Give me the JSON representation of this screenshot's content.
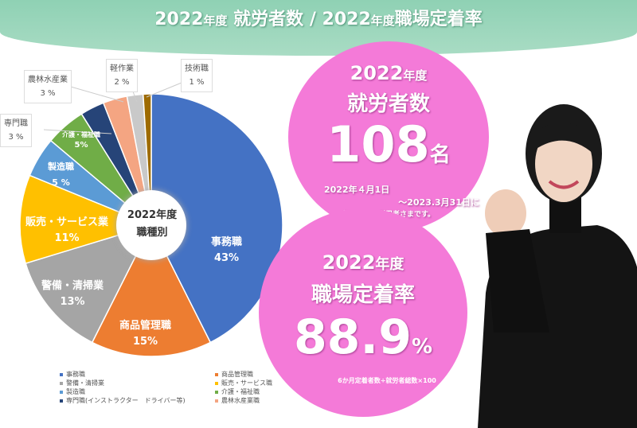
{
  "header": {
    "title_year1": "2022",
    "title_nendo1": "年度",
    "title_part1": "就労者数",
    "sep": "/",
    "title_year2": "2022",
    "title_nendo2": "年度",
    "title_part2": "職場定着率"
  },
  "chart_data": {
    "type": "pie",
    "title": "2022年度 職種別",
    "center_label_line1": "2022年度",
    "center_label_line2": "職種別",
    "categories": [
      "事務職",
      "商品管理職",
      "警備・清掃業",
      "販売・サービス業",
      "製造職",
      "介護・福祉職",
      "専門職",
      "農林水産業",
      "軽作業",
      "技術職"
    ],
    "values": [
      43,
      15,
      13,
      11,
      5,
      5,
      3,
      3,
      2,
      1
    ],
    "labels": [
      "43%",
      "15%",
      "13%",
      "11%",
      "5 %",
      "5%",
      "3 %",
      "3 %",
      "2 %",
      "1 %"
    ],
    "colors": [
      "#4472c4",
      "#ed7d31",
      "#a5a5a5",
      "#ffc000",
      "#5b9bd5",
      "#70ad47",
      "#264478",
      "#f4a582",
      "#c9c9c9",
      "#9e6b00"
    ],
    "legend": [
      "事務職",
      "商品管理職",
      "警備・清掃業",
      "販売・サービス職",
      "製造職",
      "介護・福祉職",
      "専門職(インストラクター　ドライバー等)",
      "農林水産業職"
    ],
    "legend_colors": [
      "#4472c4",
      "#ed7d31",
      "#a5a5a5",
      "#ffc000",
      "#5b9bd5",
      "#70ad47",
      "#264478",
      "#f4a582"
    ]
  },
  "workers": {
    "year": "2022",
    "nendo": "年度",
    "label": "就労者数",
    "count": "108",
    "unit": "名",
    "period_start": "2022年４月1日",
    "period_end": "～2023.3月31日に",
    "note": "就労された利用者さまです。"
  },
  "retention": {
    "year": "2022",
    "nendo": "年度",
    "label": "職場定着率",
    "rate": "88.9",
    "unit": "%",
    "formula": "6か月定着者数÷就労者総数×100"
  }
}
